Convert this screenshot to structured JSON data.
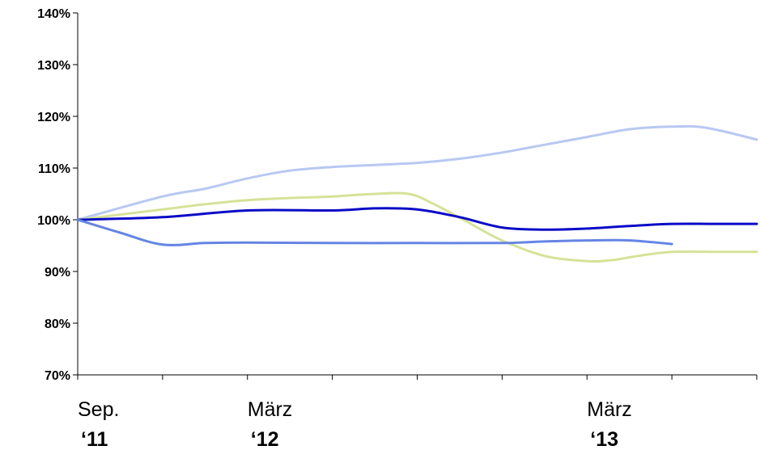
{
  "chart_data": {
    "type": "line",
    "ylim": [
      70,
      140
    ],
    "yticks": [
      70,
      80,
      90,
      100,
      110,
      120,
      130,
      140
    ],
    "ytick_suffix": "%",
    "xlim": [
      0,
      8
    ],
    "xtick_positions": [
      0,
      1,
      2,
      3,
      4,
      5,
      6,
      7,
      8
    ],
    "x_labels": [
      {
        "x": 0,
        "month": "Sep.",
        "year": "‘11"
      },
      {
        "x": 2,
        "month": "März",
        "year": "‘12"
      },
      {
        "x": 6,
        "month": "März",
        "year": "‘13"
      }
    ],
    "grid": false,
    "legend": "none",
    "series": [
      {
        "color": "#b8c8f2",
        "x": [
          0,
          1,
          1.5,
          2,
          2.5,
          3,
          3.5,
          4,
          4.5,
          5,
          5.5,
          6,
          6.5,
          7,
          7.4,
          8
        ],
        "y": [
          100,
          104.5,
          106,
          108,
          109.5,
          110.2,
          110.6,
          111,
          111.8,
          113,
          114.5,
          116,
          117.5,
          118,
          117.8,
          115.5
        ]
      },
      {
        "color": "#d6e298",
        "x": [
          0,
          1,
          1.5,
          2,
          2.5,
          3,
          3.5,
          3.9,
          4.2,
          4.6,
          5,
          5.5,
          6,
          6.3,
          6.6,
          7,
          7.5,
          8
        ],
        "y": [
          100,
          102,
          103,
          103.8,
          104.2,
          104.5,
          105,
          105,
          103,
          99.5,
          96,
          93,
          92,
          92.2,
          93,
          93.8,
          93.8,
          93.8
        ]
      },
      {
        "color": "#0a0ac8",
        "x": [
          0,
          1,
          2,
          3,
          3.5,
          4,
          4.5,
          5,
          5.5,
          6,
          6.5,
          7,
          7.5,
          8
        ],
        "y": [
          100,
          100.5,
          101.8,
          101.8,
          102.2,
          102,
          100.5,
          98.5,
          98.1,
          98.3,
          98.8,
          99.2,
          99.2,
          99.2
        ]
      },
      {
        "color": "#6585e4",
        "x": [
          0,
          0.5,
          1,
          1.5,
          2,
          3,
          4,
          5,
          5.5,
          6,
          6.5,
          7
        ],
        "y": [
          100,
          97.5,
          95.2,
          95.5,
          95.6,
          95.5,
          95.5,
          95.5,
          95.8,
          96,
          96,
          95.3
        ]
      }
    ]
  }
}
